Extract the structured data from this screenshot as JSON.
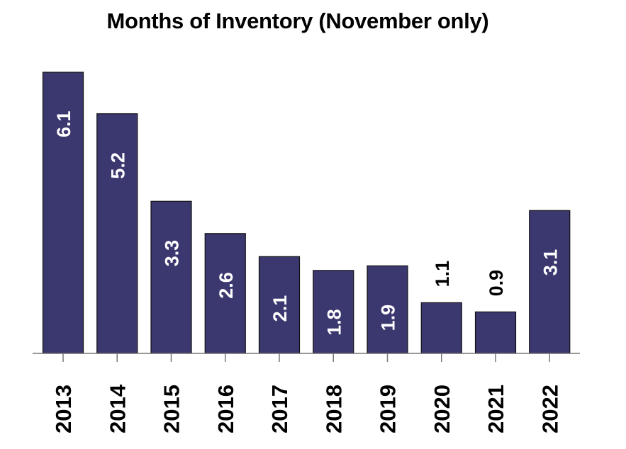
{
  "chart_data": {
    "type": "bar",
    "title": "Months of Inventory (November only)",
    "xlabel": "",
    "ylabel": "",
    "categories": [
      "2013",
      "2014",
      "2015",
      "2016",
      "2017",
      "2018",
      "2019",
      "2020",
      "2021",
      "2022"
    ],
    "values": [
      6.1,
      5.2,
      3.3,
      2.6,
      2.1,
      1.8,
      1.9,
      1.1,
      0.9,
      3.1
    ],
    "data_labels": [
      "6.1",
      "5.2",
      "3.3",
      "2.6",
      "2.1",
      "1.8",
      "1.9",
      "1.1",
      "0.9",
      "3.1"
    ],
    "ylim": [
      0,
      6.1
    ],
    "grid": false,
    "legend": "none",
    "colors": {
      "bar": "#3b3870",
      "label_inside": "#ffffff",
      "label_outside": "#000000"
    }
  }
}
